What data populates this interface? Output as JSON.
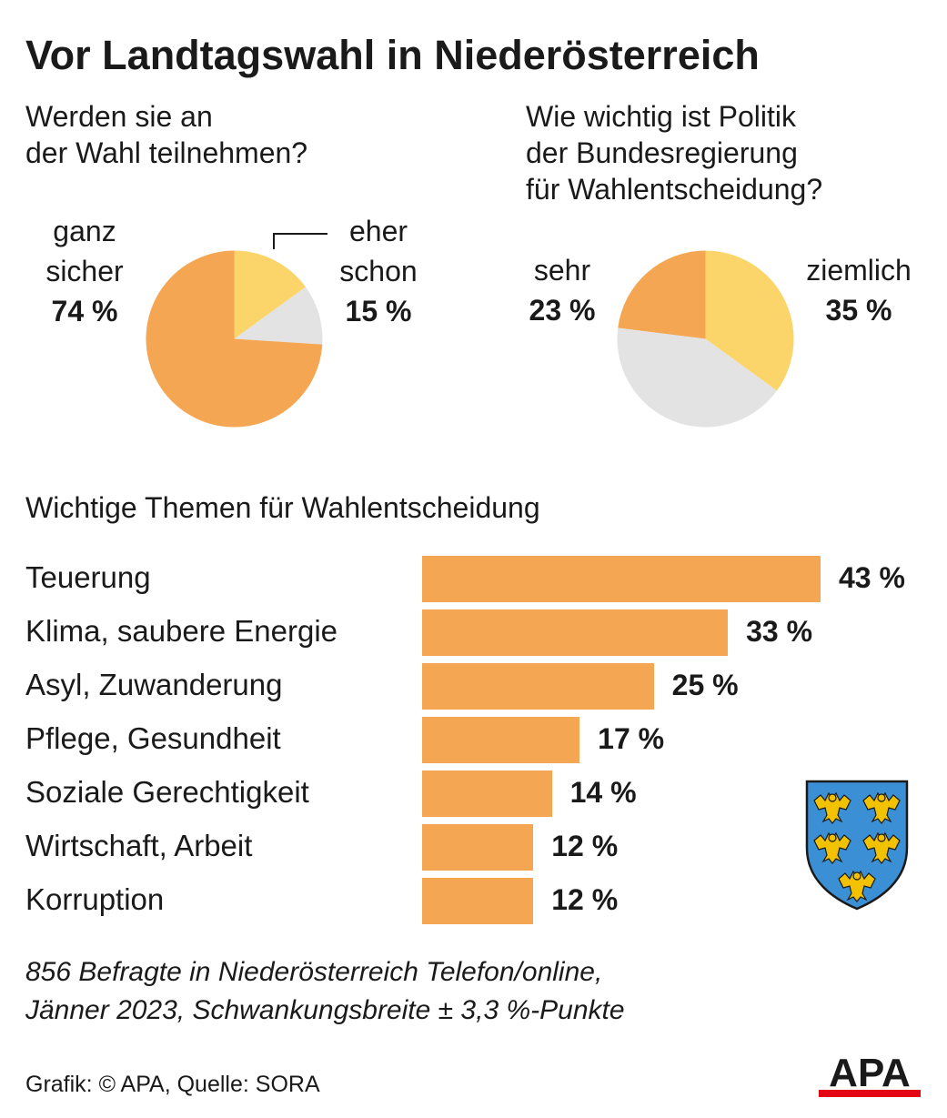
{
  "title": "Vor Landtagswahl in Niederösterreich",
  "pie1": {
    "question_lines": [
      "Werden sie an",
      "der Wahl teilnehmen?"
    ],
    "slices": [
      {
        "label_lines": [
          "eher",
          "schon"
        ],
        "value_text": "15 %",
        "value": 15,
        "color": "#fcd56a"
      },
      {
        "label_lines": [],
        "value_text": "",
        "value": 11,
        "color": "#e3e3e3"
      },
      {
        "label_lines": [
          "ganz",
          "sicher"
        ],
        "value_text": "74 %",
        "value": 74,
        "color": "#f4a653"
      }
    ]
  },
  "pie2": {
    "question_lines": [
      "Wie wichtig ist Politik",
      "der Bundesregierung",
      "für Wahlentscheidung?"
    ],
    "slices": [
      {
        "label_lines": [
          "ziemlich"
        ],
        "value_text": "35 %",
        "value": 35,
        "color": "#fcd56a"
      },
      {
        "label_lines": [],
        "value_text": "",
        "value": 42,
        "color": "#e3e3e3"
      },
      {
        "label_lines": [
          "sehr"
        ],
        "value_text": "23 %",
        "value": 23,
        "color": "#f4a653"
      }
    ]
  },
  "chart_data": {
    "type": "bar",
    "title": "Wichtige Themen für Wahlentscheidung",
    "categories": [
      "Teuerung",
      "Klima, saubere Energie",
      "Asyl, Zuwanderung",
      "Pflege, Gesundheit",
      "Soziale Gerechtigkeit",
      "Wirtschaft, Arbeit",
      "Korruption"
    ],
    "values": [
      43,
      33,
      25,
      17,
      14,
      12,
      12
    ],
    "value_labels": [
      "43 %",
      "33 %",
      "25 %",
      "17 %",
      "14 %",
      "12 %",
      "12 %"
    ],
    "unit": "%",
    "color": "#f4a653",
    "orientation": "horizontal"
  },
  "footnote_lines": [
    "856 Befragte in Niederösterreich Telefon/online,",
    "Jänner 2023, Schwankungsbreite ± 3,3 %-Punkte"
  ],
  "source": "Grafik: © APA, Quelle: SORA",
  "logo_text": "APA",
  "colors": {
    "orange": "#f4a653",
    "yellow": "#fcd56a",
    "grey": "#e3e3e3",
    "coat_blue": "#3b8fd4",
    "coat_gold": "#f2c200"
  }
}
